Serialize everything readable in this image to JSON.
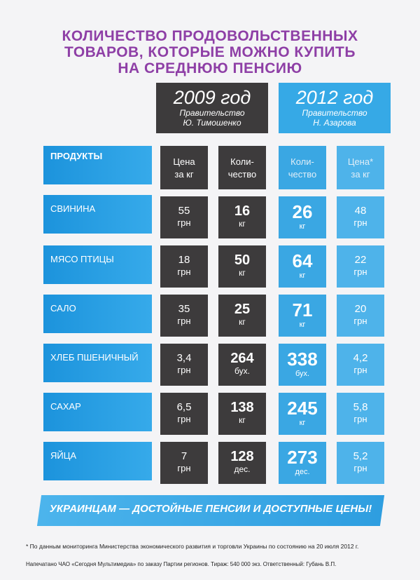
{
  "title": {
    "line1": "КОЛИЧЕСТВО ПРОДОВОЛЬСТВЕННЫХ",
    "line2": "ТОВАРОВ, КОТОРЫЕ МОЖНО КУПИТЬ",
    "line3": "НА СРЕДНЮЮ ПЕНСИЮ"
  },
  "col2009": {
    "year": "2009 год",
    "sub1": "Правительство",
    "sub2": "Ю. Тимошенко"
  },
  "col2012": {
    "year": "2012 год",
    "sub1": "Правительство",
    "sub2": "Н. Азарова"
  },
  "headers": {
    "products": "ПРОДУКТЫ",
    "price_2009": [
      "Цена",
      "за кг"
    ],
    "qty_2009": [
      "Коли-",
      "чество"
    ],
    "qty_2012": [
      "Коли-",
      "чество"
    ],
    "price_2012": [
      "Цена*",
      "за кг"
    ]
  },
  "rows": [
    {
      "name": "СВИНИНА",
      "p09": "55",
      "p09u": "грн",
      "q09": "16",
      "q09u": "кг",
      "q12": "26",
      "q12u": "кг",
      "p12": "48",
      "p12u": "грн"
    },
    {
      "name": "МЯСО ПТИЦЫ",
      "p09": "18",
      "p09u": "грн",
      "q09": "50",
      "q09u": "кг",
      "q12": "64",
      "q12u": "кг",
      "p12": "22",
      "p12u": "грн"
    },
    {
      "name": "САЛО",
      "p09": "35",
      "p09u": "грн",
      "q09": "25",
      "q09u": "кг",
      "q12": "71",
      "q12u": "кг",
      "p12": "20",
      "p12u": "грн"
    },
    {
      "name": "ХЛЕБ ПШЕНИЧНЫЙ",
      "p09": "3,4",
      "p09u": "грн",
      "q09": "264",
      "q09u": "бух.",
      "q12": "338",
      "q12u": "бух.",
      "p12": "4,2",
      "p12u": "грн"
    },
    {
      "name": "САХАР",
      "p09": "6,5",
      "p09u": "грн",
      "q09": "138",
      "q09u": "кг",
      "q12": "245",
      "q12u": "кг",
      "p12": "5,8",
      "p12u": "грн"
    },
    {
      "name": "ЯЙЦА",
      "p09": "7",
      "p09u": "грн",
      "q09": "128",
      "q09u": "дес.",
      "q12": "273",
      "q12u": "дес.",
      "p12": "5,2",
      "p12u": "грн"
    }
  ],
  "slogan": "УКРАИНЦАМ — ДОСТОЙНЫЕ ПЕНСИИ И ДОСТУПНЫЕ ЦЕНЫ!",
  "footnote": "* По данным мониторинга Министерства экономического развития и торговли Украины по состоянию на 20 июля 2012 г.",
  "imprint": "Напечатано ЧАО «Сегодня Мультимедиа» по заказу Партии регионов. Тираж: 540 000 экз. Ответственный: Губань В.П."
}
